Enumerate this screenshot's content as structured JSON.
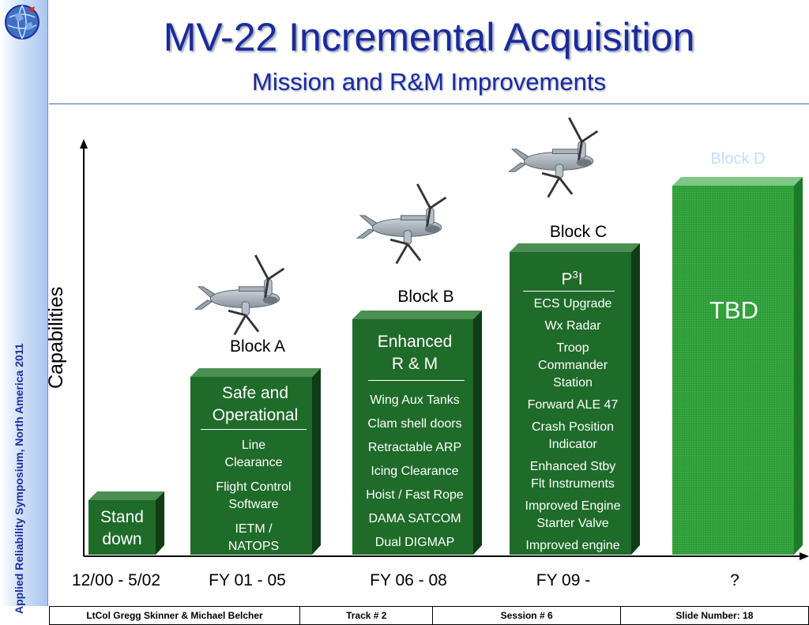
{
  "header": {
    "title": "MV-22 Incremental Acquisition",
    "subtitle": "Mission and R&M Improvements"
  },
  "sidebar": {
    "text": "Applied Reliability Symposium, North America 2011"
  },
  "y_axis_label": "Capabilities",
  "periods": [
    "12/00 - 5/02",
    "FY 01 - 05",
    "FY 06 - 08",
    "FY 09 -",
    "?"
  ],
  "blocks": {
    "stand_down": {
      "heading": [
        "Stand",
        "down"
      ]
    },
    "a": {
      "label": "Block A",
      "heading": [
        "Safe and",
        "Operational"
      ],
      "items": [
        [
          "Line",
          "Clearance"
        ],
        [
          "Flight Control",
          "Software"
        ],
        [
          "IETM /",
          "NATOPS"
        ]
      ]
    },
    "b": {
      "label": "Block B",
      "heading": [
        "Enhanced",
        "R & M"
      ],
      "items": [
        [
          "Wing Aux Tanks"
        ],
        [
          "Clam shell doors"
        ],
        [
          "Retractable ARP"
        ],
        [
          "Icing Clearance"
        ],
        [
          "Hoist / Fast Rope"
        ],
        [
          "DAMA SATCOM"
        ],
        [
          "Dual DIGMAP"
        ]
      ]
    },
    "c": {
      "label": "Block C",
      "heading_main": "P",
      "heading_sup": "3",
      "heading_tail": "I",
      "items": [
        [
          "ECS Upgrade"
        ],
        [
          "Wx Radar"
        ],
        [
          "Troop",
          "Commander",
          "Station"
        ],
        [
          "Forward ALE 47"
        ],
        [
          "Crash Position",
          "Indicator"
        ],
        [
          "Enhanced Stby",
          "Flt Instruments"
        ],
        [
          "Improved Engine",
          "Starter Valve"
        ],
        [
          "Improved engine"
        ]
      ]
    },
    "d": {
      "label": "Block D",
      "heading": "TBD"
    }
  },
  "footer": {
    "presenters": "LtCol Gregg Skinner & Michael Belcher",
    "track": "Track # 2",
    "session": "Session # 6",
    "slide": "Slide Number: 18"
  },
  "colors": {
    "title": "#1a2a9c",
    "block_green": "#1f6b2a",
    "block_d_green": "#2f9a3a",
    "footer_text": "#000000"
  },
  "icons": [
    "globe-logo-icon",
    "osprey-aircraft-icon"
  ]
}
